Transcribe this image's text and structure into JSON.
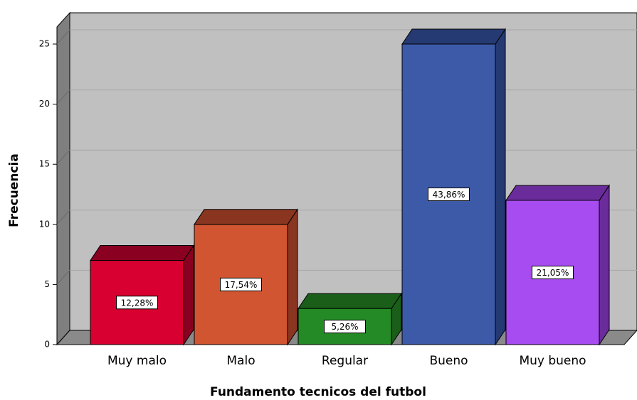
{
  "chart_data": {
    "type": "bar3d",
    "x_label": "Fundamento tecnicos del futbol",
    "y_label": "Frecuencia",
    "categories": [
      "Muy malo",
      "Malo",
      "Regular",
      "Bueno",
      "Muy bueno"
    ],
    "values": [
      7,
      10,
      3,
      25,
      12
    ],
    "percent_labels": [
      {
        "value": 12.28,
        "label": "12,28%"
      },
      {
        "value": 17.54,
        "label": "17,54%"
      },
      {
        "value": 5.26,
        "label": "5,26%"
      },
      {
        "value": 43.86,
        "label": "43,86%"
      },
      {
        "value": 21.05,
        "label": "21,05%"
      }
    ],
    "colors": [
      "#d80030",
      "#d15531",
      "#248a25",
      "#3d5aa9",
      "#a74cf1"
    ],
    "side_colors": [
      "#8a0020",
      "#8a3520",
      "#1a5e1a",
      "#253a72",
      "#6a2c9a"
    ],
    "ylim": [
      0,
      25
    ],
    "yticks": [
      0,
      5,
      10,
      15,
      20,
      25
    ],
    "grid": true
  }
}
